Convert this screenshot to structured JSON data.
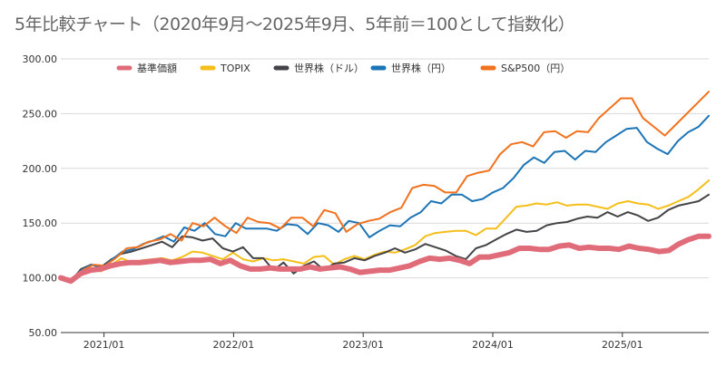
{
  "chart_data": {
    "type": "line",
    "title": "5年比較チャート（2020年9月～2025年9月、5年前＝100として指数化）",
    "xlabel": "",
    "ylabel": "",
    "ylim": [
      50,
      300
    ],
    "yticks": [
      "50.00",
      "100.00",
      "150.00",
      "200.00",
      "250.00",
      "300.00"
    ],
    "xticks": [
      "2021/01",
      "2022/01",
      "2023/01",
      "2024/01",
      "2025/01"
    ],
    "x_start": "2020/09",
    "x_end": "2025/09",
    "legend_position": "top",
    "grid": "horizontal",
    "series": [
      {
        "name": "基準価額",
        "color": "#e06c7a",
        "width": 6,
        "values": [
          100,
          97,
          104,
          107,
          108,
          111,
          113,
          114,
          114,
          115,
          116,
          114,
          115,
          116,
          116,
          117,
          113,
          116,
          111,
          108,
          108,
          109,
          108,
          108,
          108,
          110,
          108,
          109,
          110,
          108,
          105,
          106,
          107,
          107,
          109,
          111,
          115,
          118,
          117,
          118,
          116,
          113,
          119,
          119,
          121,
          123,
          127,
          127,
          126,
          126,
          129,
          130,
          127,
          128,
          127,
          127,
          126,
          129,
          127,
          126,
          124,
          125,
          131,
          135,
          138,
          138
        ]
      },
      {
        "name": "TOPIX",
        "color": "#f5be19",
        "width": 2,
        "values": [
          100,
          98,
          103,
          107,
          106,
          112,
          118,
          114,
          116,
          117,
          118,
          116,
          119,
          124,
          123,
          120,
          117,
          123,
          117,
          115,
          118,
          116,
          117,
          115,
          113,
          119,
          120,
          112,
          117,
          120,
          117,
          121,
          124,
          123,
          126,
          130,
          138,
          141,
          142,
          143,
          143,
          139,
          145,
          145,
          155,
          165,
          166,
          168,
          167,
          169,
          166,
          167,
          167,
          165,
          163,
          168,
          170,
          168,
          167,
          163,
          166,
          170,
          174,
          181,
          189
        ]
      },
      {
        "name": "世界株（ドル）",
        "color": "#434348",
        "width": 2,
        "values": [
          100,
          97,
          108,
          112,
          110,
          117,
          122,
          124,
          127,
          130,
          133,
          128,
          138,
          137,
          134,
          136,
          127,
          124,
          128,
          118,
          118,
          107,
          114,
          104,
          111,
          115,
          107,
          113,
          114,
          118,
          116,
          120,
          123,
          127,
          123,
          126,
          131,
          128,
          125,
          120,
          117,
          127,
          130,
          135,
          140,
          144,
          142,
          143,
          148,
          150,
          151,
          154,
          156,
          155,
          160,
          156,
          160,
          157,
          152,
          155,
          162,
          166,
          168,
          170,
          176
        ]
      },
      {
        "name": "世界株（円）",
        "color": "#1b74b6",
        "width": 2,
        "values": [
          100,
          98,
          107,
          112,
          109,
          117,
          124,
          126,
          131,
          134,
          138,
          133,
          146,
          143,
          150,
          140,
          138,
          150,
          145,
          145,
          145,
          143,
          149,
          148,
          140,
          150,
          148,
          142,
          152,
          150,
          137,
          143,
          148,
          147,
          155,
          160,
          170,
          168,
          176,
          176,
          170,
          172,
          178,
          182,
          191,
          203,
          210,
          205,
          215,
          216,
          208,
          216,
          215,
          224,
          230,
          236,
          237,
          224,
          218,
          213,
          225,
          233,
          238,
          248
        ]
      },
      {
        "name": "S&P500（円）",
        "color": "#f2711c",
        "width": 2,
        "values": [
          100,
          97,
          107,
          112,
          111,
          118,
          127,
          128,
          133,
          135,
          140,
          134,
          150,
          147,
          155,
          147,
          141,
          155,
          151,
          150,
          145,
          155,
          155,
          147,
          162,
          159,
          142,
          149,
          152,
          154,
          160,
          164,
          182,
          185,
          184,
          178,
          178,
          193,
          196,
          198,
          213,
          222,
          224,
          220,
          233,
          234,
          228,
          234,
          233,
          246,
          255,
          264,
          264,
          246,
          238,
          230,
          240,
          250,
          260,
          270
        ]
      }
    ]
  }
}
